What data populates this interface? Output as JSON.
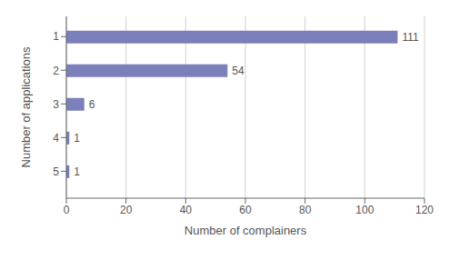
{
  "chart_data": {
    "type": "bar",
    "orientation": "horizontal",
    "categories": [
      1,
      2,
      3,
      4,
      5
    ],
    "values": [
      111,
      54,
      6,
      1,
      1
    ],
    "color": "#7b7fba",
    "xlabel": "Number of complainers",
    "ylabel": "Number of applications",
    "xlim": [
      0,
      120
    ],
    "xticks": [
      0,
      20,
      40,
      60,
      80,
      100,
      120
    ],
    "ylim": [
      0.4,
      5.8
    ],
    "yticks": [
      1,
      2,
      3,
      4,
      5
    ],
    "grid": true,
    "data_labels": true
  }
}
